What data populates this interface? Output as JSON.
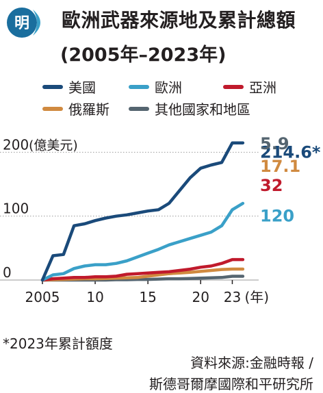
{
  "badge": {
    "text": "明",
    "color": "#1a6e9e"
  },
  "header": {
    "title": "歐洲武器來源地及累計總額",
    "subtitle": "(2005年–2023年)"
  },
  "chart_data": {
    "type": "line",
    "title": "歐洲武器來源地及累計總額",
    "subtitle": "(2005年–2023年)",
    "unit_label": "(億美元)",
    "x_suffix": "(年)",
    "x_ticks": [
      {
        "value": 2005,
        "label": "2005"
      },
      {
        "value": 2010,
        "label": "10"
      },
      {
        "value": 2015,
        "label": "15"
      },
      {
        "value": 2020,
        "label": "20"
      },
      {
        "value": 2023,
        "label": "23"
      }
    ],
    "y_ticks": [
      0,
      100,
      200
    ],
    "xlim": [
      2005,
      2025.5
    ],
    "ylim": [
      0,
      225
    ],
    "grid": "horizontal",
    "legend_position": "top",
    "series": [
      {
        "name": "美國",
        "color": "#1a4a7a",
        "end_label": "214.6*",
        "points": [
          [
            2005,
            0
          ],
          [
            2006,
            38
          ],
          [
            2007,
            40
          ],
          [
            2008,
            85
          ],
          [
            2009,
            88
          ],
          [
            2010,
            93
          ],
          [
            2011,
            97
          ],
          [
            2012,
            100
          ],
          [
            2013,
            102
          ],
          [
            2014,
            105
          ],
          [
            2015,
            108
          ],
          [
            2016,
            110
          ],
          [
            2017,
            120
          ],
          [
            2018,
            140
          ],
          [
            2019,
            160
          ],
          [
            2020,
            175
          ],
          [
            2021,
            180
          ],
          [
            2022,
            184
          ],
          [
            2023,
            214.6
          ],
          [
            2024,
            214.6
          ]
        ]
      },
      {
        "name": "歐洲",
        "color": "#3aa0c8",
        "end_label": "120",
        "points": [
          [
            2005,
            0
          ],
          [
            2006,
            8
          ],
          [
            2007,
            10
          ],
          [
            2008,
            18
          ],
          [
            2009,
            22
          ],
          [
            2010,
            24
          ],
          [
            2011,
            24
          ],
          [
            2012,
            26
          ],
          [
            2013,
            30
          ],
          [
            2014,
            36
          ],
          [
            2015,
            42
          ],
          [
            2016,
            48
          ],
          [
            2017,
            55
          ],
          [
            2018,
            60
          ],
          [
            2019,
            65
          ],
          [
            2020,
            70
          ],
          [
            2021,
            75
          ],
          [
            2022,
            85
          ],
          [
            2023,
            110
          ],
          [
            2024,
            120
          ]
        ]
      },
      {
        "name": "亞洲",
        "color": "#c01a2c",
        "end_label": "32",
        "points": [
          [
            2005,
            0
          ],
          [
            2006,
            2
          ],
          [
            2007,
            3
          ],
          [
            2008,
            4
          ],
          [
            2009,
            4
          ],
          [
            2010,
            5
          ],
          [
            2011,
            5
          ],
          [
            2012,
            6
          ],
          [
            2013,
            9
          ],
          [
            2014,
            10
          ],
          [
            2015,
            11
          ],
          [
            2016,
            12
          ],
          [
            2017,
            13
          ],
          [
            2018,
            15
          ],
          [
            2019,
            17
          ],
          [
            2020,
            20
          ],
          [
            2021,
            22
          ],
          [
            2022,
            26
          ],
          [
            2023,
            32
          ],
          [
            2024,
            32
          ]
        ]
      },
      {
        "name": "俄羅斯",
        "color": "#d08a40",
        "end_label": "17.1",
        "points": [
          [
            2005,
            0
          ],
          [
            2006,
            0.5
          ],
          [
            2007,
            1
          ],
          [
            2008,
            1.5
          ],
          [
            2009,
            2
          ],
          [
            2010,
            2
          ],
          [
            2011,
            2.5
          ],
          [
            2012,
            3
          ],
          [
            2013,
            3.5
          ],
          [
            2014,
            4
          ],
          [
            2015,
            6
          ],
          [
            2016,
            8
          ],
          [
            2017,
            10
          ],
          [
            2018,
            11
          ],
          [
            2019,
            12
          ],
          [
            2020,
            13.5
          ],
          [
            2021,
            15
          ],
          [
            2022,
            16.5
          ],
          [
            2023,
            17.1
          ],
          [
            2024,
            17.1
          ]
        ]
      },
      {
        "name": "其他國家和地區",
        "color": "#556570",
        "end_label": "5.9",
        "points": [
          [
            2005,
            0
          ],
          [
            2006,
            0
          ],
          [
            2007,
            0
          ],
          [
            2008,
            0
          ],
          [
            2009,
            0
          ],
          [
            2010,
            0
          ],
          [
            2011,
            0
          ],
          [
            2012,
            0.5
          ],
          [
            2013,
            0.5
          ],
          [
            2014,
            1
          ],
          [
            2015,
            1
          ],
          [
            2016,
            1.5
          ],
          [
            2017,
            2
          ],
          [
            2018,
            2
          ],
          [
            2019,
            2.5
          ],
          [
            2020,
            3
          ],
          [
            2021,
            3.5
          ],
          [
            2022,
            4
          ],
          [
            2023,
            5.9
          ],
          [
            2024,
            5.9
          ]
        ]
      }
    ]
  },
  "footer": {
    "footnote": "*2023年累計額度",
    "source_line1": "資料來源:金融時報 /",
    "source_line2": "斯德哥爾摩國際和平研究所"
  }
}
